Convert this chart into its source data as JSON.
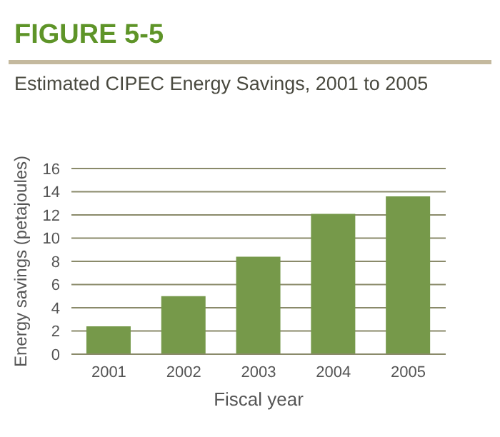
{
  "chart_data": {
    "type": "bar",
    "title": "FIGURE 5-5",
    "subtitle": "Estimated CIPEC Energy Savings, 2001 to 2005",
    "xlabel": "Fiscal year",
    "ylabel": "Energy savings (petajoules)",
    "categories": [
      "2001",
      "2002",
      "2003",
      "2004",
      "2005"
    ],
    "values": [
      2.4,
      5.0,
      8.4,
      12.1,
      13.6
    ],
    "color": "#76994a",
    "ylim": [
      0,
      16
    ],
    "yticks": [
      0,
      2,
      4,
      6,
      8,
      10,
      12,
      14,
      16
    ],
    "grid": "y"
  }
}
